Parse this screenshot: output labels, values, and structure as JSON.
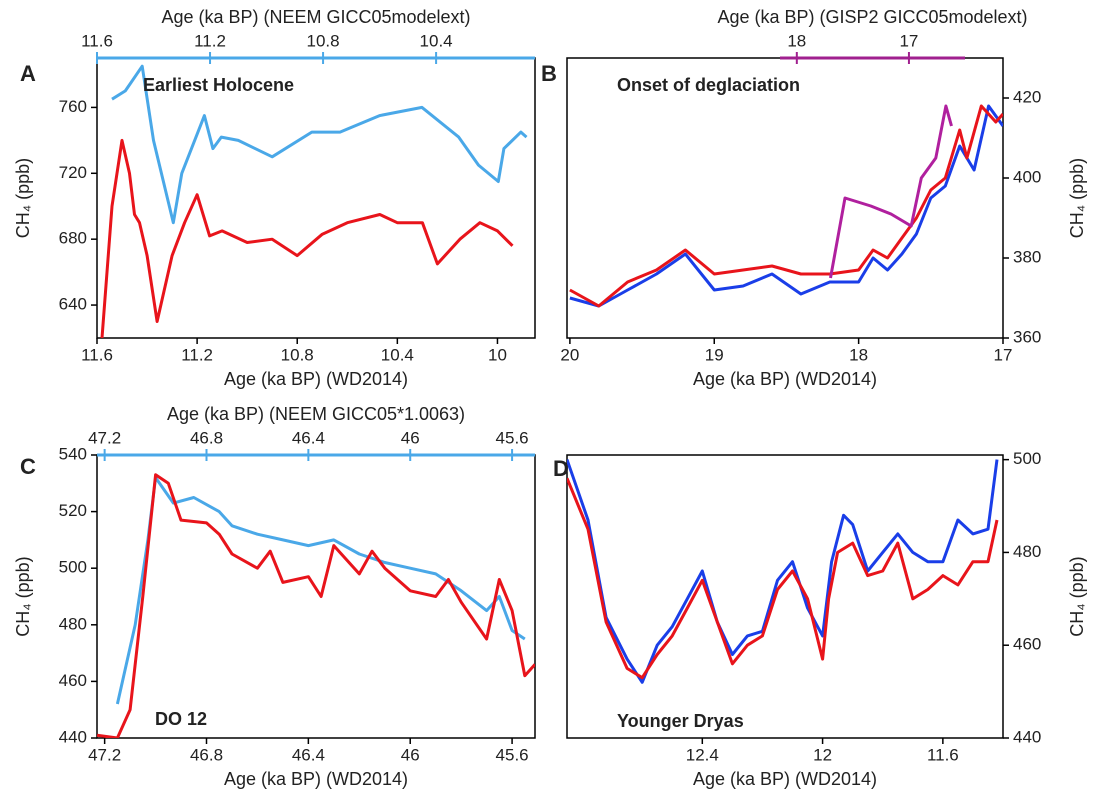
{
  "chart_data": [
    {
      "type": "line",
      "panel": "A",
      "title": "Earliest Holocene",
      "xlabel": "Age (ka BP) (WD2014)",
      "ylabel": "CH₄ (ppb)",
      "x2label": "Age (ka BP) (NEEM GICC05modelext)",
      "x2color": "#4aa8e8",
      "xlim": [
        11.6,
        9.85
      ],
      "xticks": [
        11.6,
        11.2,
        10.8,
        10.4,
        10
      ],
      "x2lim": [
        11.6,
        10.05
      ],
      "x2ticks": [
        11.6,
        11.2,
        10.8,
        10.4
      ],
      "ylim": [
        620,
        790
      ],
      "yticks": [
        640,
        680,
        720,
        760
      ],
      "yaxis_side": "left",
      "series": [
        {
          "color": "#4aa8e8",
          "xaxis": "x2",
          "x": [
            11.547,
            11.5,
            11.44,
            11.4,
            11.33,
            11.3,
            11.22,
            11.19,
            11.16,
            11.1,
            10.98,
            10.84,
            10.74,
            10.6,
            10.45,
            10.32,
            10.25,
            10.18,
            10.16,
            10.1,
            10.08
          ],
          "values": [
            765,
            770,
            785,
            740,
            690,
            720,
            755,
            735,
            742,
            740,
            730,
            745,
            745,
            755,
            760,
            742,
            725,
            715,
            735,
            745,
            742
          ]
        },
        {
          "color": "#e8141b",
          "x": [
            11.58,
            11.54,
            11.5,
            11.47,
            11.45,
            11.43,
            11.4,
            11.36,
            11.3,
            11.25,
            11.2,
            11.15,
            11.1,
            11.0,
            10.9,
            10.8,
            10.7,
            10.6,
            10.47,
            10.4,
            10.3,
            10.24,
            10.15,
            10.07,
            10.0,
            9.94
          ],
          "values": [
            620,
            700,
            740,
            720,
            695,
            690,
            670,
            630,
            670,
            690,
            707,
            682,
            685,
            678,
            680,
            670,
            683,
            690,
            695,
            690,
            690,
            665,
            680,
            690,
            685,
            676
          ]
        }
      ]
    },
    {
      "type": "line",
      "panel": "B",
      "title": "Onset of deglaciation",
      "xlabel": "Age (ka BP) (WD2014)",
      "ylabel": "CH₄ (ppb)",
      "x2label": "Age (ka BP) (GISP2 GICC05modelext)",
      "x2color": "#a0208f",
      "xlim": [
        20.02,
        17.0
      ],
      "xticks": [
        20,
        19,
        18,
        17
      ],
      "x2lim": [
        18.15,
        16.5
      ],
      "x2ticks": [
        18,
        17
      ],
      "ylim": [
        360,
        430
      ],
      "yticks": [
        360,
        380,
        400,
        420
      ],
      "yaxis_side": "right",
      "series": [
        {
          "color": "#1a3ee8",
          "x": [
            20.0,
            19.8,
            19.6,
            19.4,
            19.2,
            19.0,
            18.8,
            18.6,
            18.4,
            18.2,
            18.0,
            17.9,
            17.8,
            17.7,
            17.6,
            17.5,
            17.4,
            17.3,
            17.2,
            17.1,
            17.0
          ],
          "values": [
            370,
            368,
            372,
            376,
            381,
            372,
            373,
            376,
            371,
            374,
            374,
            380,
            377,
            381,
            386,
            395,
            398,
            408,
            402,
            418,
            413
          ]
        },
        {
          "color": "#e8141b",
          "x": [
            20.0,
            19.8,
            19.6,
            19.4,
            19.2,
            19.0,
            18.8,
            18.6,
            18.4,
            18.2,
            18.0,
            17.9,
            17.8,
            17.7,
            17.6,
            17.5,
            17.4,
            17.3,
            17.25,
            17.15,
            17.05,
            17.0
          ],
          "values": [
            372,
            368,
            374,
            377,
            382,
            376,
            377,
            378,
            376,
            376,
            377,
            382,
            380,
            385,
            390,
            397,
            400,
            412,
            405,
            418,
            414,
            416
          ]
        },
        {
          "color": "#b0209e",
          "xaxis": "x2",
          "x": [
            17.7,
            17.57,
            17.34,
            17.16,
            16.98,
            16.89,
            16.76,
            16.67,
            16.62
          ],
          "values": [
            375,
            395,
            393,
            391,
            388,
            400,
            405,
            418,
            413
          ]
        }
      ]
    },
    {
      "type": "line",
      "panel": "C",
      "title": "DO 12",
      "xlabel": "Age (ka BP) (WD2014)",
      "ylabel": "CH₄ (ppb)",
      "x2label": "Age (ka BP) (NEEM GICC05*1.0063)",
      "x2color": "#4aa8e8",
      "xlim": [
        47.23,
        45.51
      ],
      "xticks": [
        47.2,
        46.8,
        46.4,
        46,
        45.6
      ],
      "x2lim": [
        47.23,
        45.51
      ],
      "x2ticks": [
        47.2,
        46.8,
        46.4,
        46,
        45.6
      ],
      "ylim": [
        440,
        540
      ],
      "yticks": [
        440,
        460,
        480,
        500,
        520,
        540
      ],
      "yaxis_side": "left",
      "series": [
        {
          "color": "#4aa8e8",
          "xaxis": "x2",
          "x": [
            47.15,
            47.08,
            47.03,
            47.0,
            46.93,
            46.85,
            46.75,
            46.7,
            46.6,
            46.5,
            46.4,
            46.3,
            46.2,
            46.1,
            46.0,
            45.9,
            45.8,
            45.7,
            45.65,
            45.6,
            45.55
          ],
          "values": [
            452,
            480,
            510,
            532,
            523,
            525,
            520,
            515,
            512,
            510,
            508,
            510,
            505,
            502,
            500,
            498,
            492,
            485,
            490,
            478,
            475
          ]
        },
        {
          "color": "#e8141b",
          "x": [
            47.23,
            47.15,
            47.1,
            47.05,
            47.0,
            46.95,
            46.9,
            46.8,
            46.75,
            46.7,
            46.6,
            46.55,
            46.5,
            46.4,
            46.35,
            46.3,
            46.2,
            46.15,
            46.1,
            46.0,
            45.9,
            45.85,
            45.8,
            45.7,
            45.65,
            45.6,
            45.55,
            45.51
          ],
          "values": [
            441,
            440,
            450,
            490,
            533,
            530,
            517,
            516,
            512,
            505,
            500,
            506,
            495,
            497,
            490,
            508,
            498,
            506,
            500,
            492,
            490,
            496,
            488,
            475,
            496,
            485,
            462,
            466
          ]
        }
      ]
    },
    {
      "type": "line",
      "panel": "D",
      "title": "Younger Dryas",
      "xlabel": "Age (ka BP) (WD2014)",
      "ylabel": "CH₄ (ppb)",
      "xlim": [
        12.85,
        11.4
      ],
      "xticks": [
        12.4,
        12,
        11.6
      ],
      "ylim": [
        440,
        501
      ],
      "yticks": [
        440,
        460,
        480,
        500
      ],
      "yaxis_side": "right",
      "series": [
        {
          "color": "#1a3ee8",
          "x": [
            12.85,
            12.78,
            12.72,
            12.65,
            12.6,
            12.55,
            12.5,
            12.45,
            12.4,
            12.35,
            12.3,
            12.25,
            12.2,
            12.15,
            12.1,
            12.05,
            12.0,
            11.97,
            11.93,
            11.9,
            11.85,
            11.8,
            11.75,
            11.7,
            11.65,
            11.6,
            11.55,
            11.5,
            11.45,
            11.42
          ],
          "values": [
            500,
            487,
            466,
            457,
            452,
            460,
            464,
            470,
            476,
            465,
            458,
            462,
            463,
            474,
            478,
            468,
            462,
            478,
            488,
            486,
            476,
            480,
            484,
            480,
            478,
            478,
            487,
            484,
            485,
            500
          ]
        },
        {
          "color": "#e8141b",
          "x": [
            12.85,
            12.78,
            12.72,
            12.65,
            12.6,
            12.55,
            12.5,
            12.45,
            12.4,
            12.35,
            12.3,
            12.25,
            12.2,
            12.15,
            12.1,
            12.05,
            12.0,
            11.98,
            11.95,
            11.9,
            11.85,
            11.8,
            11.75,
            11.7,
            11.65,
            11.6,
            11.55,
            11.5,
            11.45,
            11.42
          ],
          "values": [
            496,
            485,
            465,
            455,
            453,
            458,
            462,
            468,
            474,
            465,
            456,
            460,
            462,
            472,
            476,
            470,
            457,
            470,
            480,
            482,
            475,
            476,
            482,
            470,
            472,
            475,
            473,
            478,
            478,
            487
          ]
        }
      ]
    }
  ]
}
